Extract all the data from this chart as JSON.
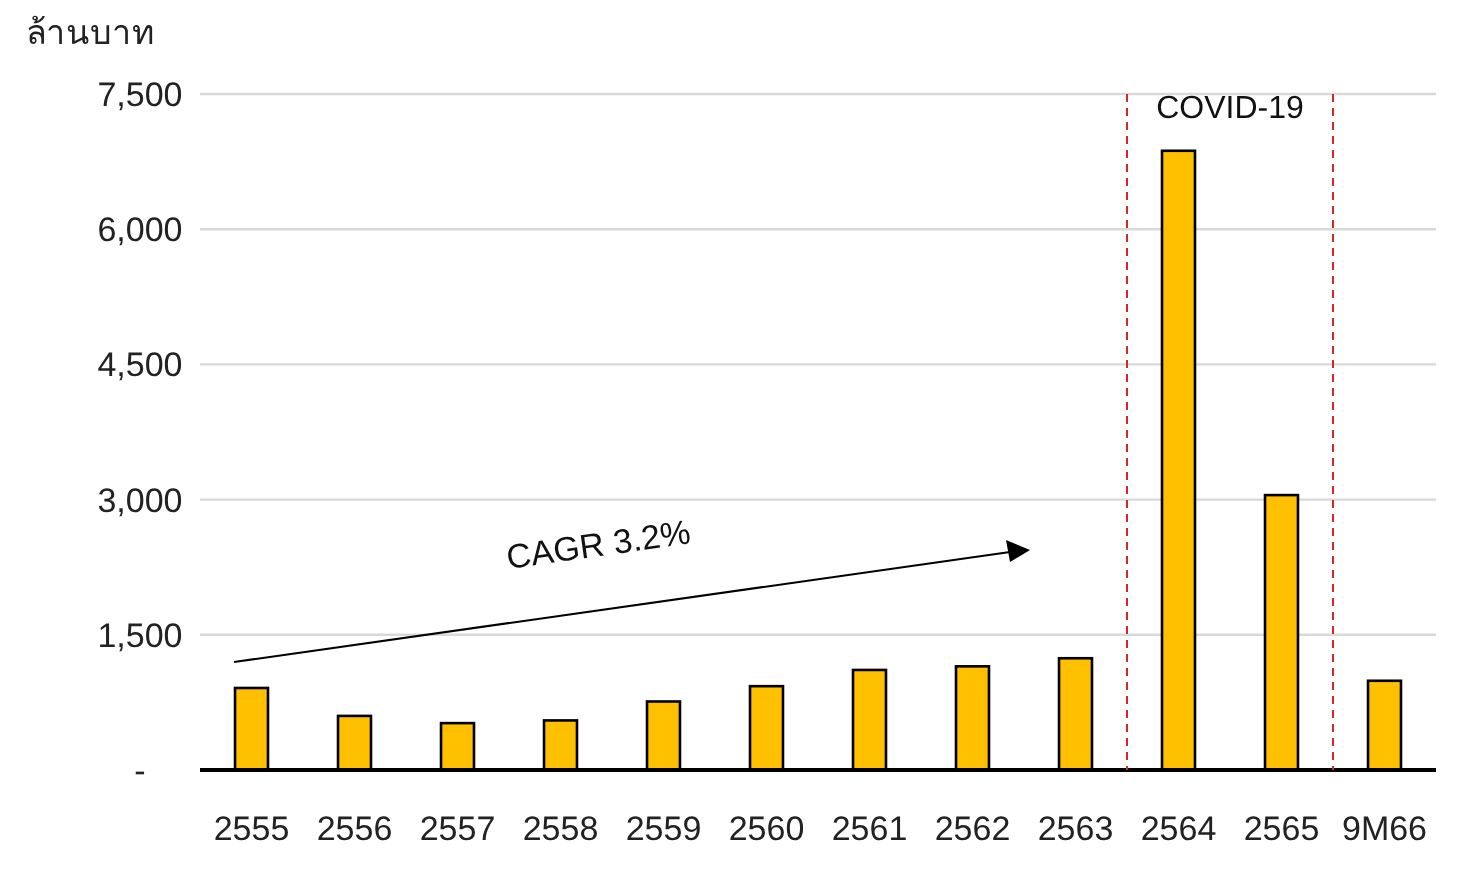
{
  "chart_data": {
    "type": "bar",
    "ylabel": "ล้านบาท",
    "categories": [
      "2555",
      "2556",
      "2557",
      "2558",
      "2559",
      "2560",
      "2561",
      "2562",
      "2563",
      "2564",
      "2565",
      "9M66"
    ],
    "values": [
      910,
      600,
      520,
      550,
      760,
      930,
      1110,
      1150,
      1240,
      6870,
      3050,
      990
    ],
    "color": "#ffc000",
    "ylim": [
      0,
      7500
    ],
    "yticks": [
      {
        "value": 0,
        "label": "-"
      },
      {
        "value": 1500,
        "label": "1,500"
      },
      {
        "value": 3000,
        "label": "3,000"
      },
      {
        "value": 4500,
        "label": "4,500"
      },
      {
        "value": 6000,
        "label": "6,000"
      },
      {
        "value": 7500,
        "label": "7,500"
      }
    ],
    "grid": "y",
    "annotations": [
      "CAGR 3.2%",
      "COVID-19"
    ]
  }
}
